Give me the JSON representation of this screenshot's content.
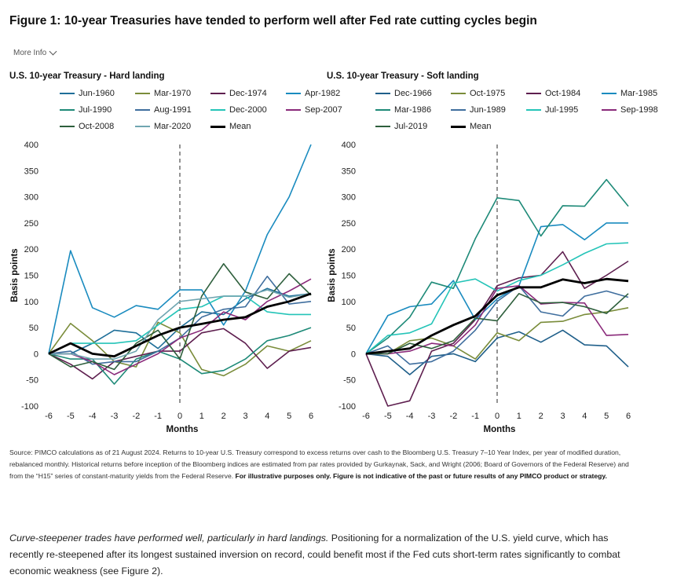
{
  "figure": {
    "title": "Figure 1: 10-year Treasuries have tended to perform well after Fed rate cutting cycles begin",
    "more_info": "More Info"
  },
  "chart_data": [
    {
      "type": "line",
      "title": "U.S. 10-year Treasury - Hard landing",
      "xlabel": "Months",
      "ylabel": "Basis points",
      "x": [
        -6,
        -5,
        -4,
        -3,
        -2,
        -1,
        0,
        1,
        2,
        3,
        4,
        5,
        6
      ],
      "ylim": [
        -100,
        400
      ],
      "yticks": [
        -100,
        -50,
        0,
        50,
        100,
        150,
        200,
        250,
        300,
        350,
        400
      ],
      "reference_line_x": 0,
      "grid": false,
      "legend_position": "top",
      "series": [
        {
          "name": "Jun-1960",
          "color": "#1f6f99",
          "values": [
            0,
            0,
            20,
            45,
            40,
            10,
            50,
            80,
            75,
            105,
            125,
            110,
            115
          ]
        },
        {
          "name": "Mar-1970",
          "color": "#7a8c3a",
          "values": [
            0,
            58,
            25,
            -15,
            -25,
            60,
            40,
            -30,
            -42,
            -20,
            15,
            5,
            25
          ]
        },
        {
          "name": "Dec-1974",
          "color": "#5e1f4f",
          "values": [
            0,
            -20,
            -48,
            -15,
            -5,
            5,
            5,
            40,
            48,
            20,
            -28,
            5,
            12
          ]
        },
        {
          "name": "Apr-1982",
          "color": "#1a8bbf",
          "values": [
            0,
            197,
            88,
            70,
            92,
            85,
            122,
            122,
            55,
            120,
            228,
            300,
            400
          ]
        },
        {
          "name": "Jul-1990",
          "color": "#1e8a78",
          "values": [
            0,
            -10,
            -10,
            -58,
            -10,
            5,
            -10,
            -38,
            -32,
            -10,
            25,
            35,
            50
          ]
        },
        {
          "name": "Aug-1991",
          "color": "#3f6e9e",
          "values": [
            0,
            5,
            -20,
            -15,
            -15,
            5,
            30,
            70,
            85,
            90,
            148,
            95,
            100
          ]
        },
        {
          "name": "Dec-2000",
          "color": "#25c4b8",
          "values": [
            0,
            20,
            20,
            20,
            25,
            55,
            85,
            90,
            110,
            110,
            80,
            75,
            75
          ]
        },
        {
          "name": "Sep-2007",
          "color": "#8a2a7a",
          "values": [
            0,
            0,
            -15,
            -40,
            -20,
            0,
            30,
            45,
            80,
            65,
            100,
            120,
            143
          ]
        },
        {
          "name": "Oct-2008",
          "color": "#2e5f3c",
          "values": [
            0,
            -25,
            -15,
            -30,
            20,
            45,
            -10,
            110,
            172,
            118,
            105,
            153,
            112
          ]
        },
        {
          "name": "Mar-2020",
          "color": "#6fa5b0",
          "values": [
            0,
            0,
            -10,
            -10,
            5,
            65,
            100,
            105,
            110,
            110,
            122,
            108,
            115
          ]
        },
        {
          "name": "Mean",
          "color": "#000000",
          "values": [
            0,
            20,
            0,
            -5,
            15,
            35,
            50,
            57,
            65,
            70,
            90,
            100,
            115
          ]
        }
      ]
    },
    {
      "type": "line",
      "title": "U.S. 10-year Treasury - Soft landing",
      "xlabel": "Months",
      "ylabel": "Basis points",
      "x": [
        -6,
        -5,
        -4,
        -3,
        -2,
        -1,
        0,
        1,
        2,
        3,
        4,
        5,
        6
      ],
      "ylim": [
        -100,
        400
      ],
      "yticks": [
        -100,
        -50,
        0,
        50,
        100,
        150,
        200,
        250,
        300,
        350,
        400
      ],
      "reference_line_x": 0,
      "grid": false,
      "legend_position": "top",
      "series": [
        {
          "name": "Dec-1966",
          "color": "#1f5f8a",
          "values": [
            0,
            -5,
            -40,
            -5,
            0,
            -15,
            30,
            42,
            22,
            45,
            17,
            15,
            -25
          ]
        },
        {
          "name": "Oct-1975",
          "color": "#7a8c3a",
          "values": [
            0,
            0,
            25,
            30,
            15,
            -10,
            40,
            25,
            60,
            62,
            75,
            80,
            88
          ]
        },
        {
          "name": "Oct-1984",
          "color": "#5e1f4f",
          "values": [
            0,
            -100,
            -90,
            5,
            20,
            65,
            130,
            145,
            150,
            195,
            125,
            150,
            177
          ]
        },
        {
          "name": "Mar-1985",
          "color": "#1a8bbf",
          "values": [
            0,
            73,
            90,
            95,
            140,
            65,
            105,
            130,
            243,
            247,
            218,
            250,
            250
          ]
        },
        {
          "name": "Mar-1986",
          "color": "#1e8a78",
          "values": [
            0,
            30,
            70,
            137,
            125,
            220,
            298,
            293,
            225,
            283,
            282,
            333,
            282
          ]
        },
        {
          "name": "Jun-1989",
          "color": "#3f6e9e",
          "values": [
            0,
            15,
            -20,
            -15,
            5,
            45,
            100,
            130,
            80,
            72,
            110,
            120,
            108
          ]
        },
        {
          "name": "Jul-1995",
          "color": "#25c4b8",
          "values": [
            0,
            35,
            40,
            57,
            135,
            143,
            120,
            140,
            150,
            170,
            192,
            210,
            212
          ]
        },
        {
          "name": "Sep-1998",
          "color": "#8a2a7a",
          "values": [
            0,
            0,
            5,
            20,
            15,
            55,
            125,
            130,
            95,
            98,
            97,
            35,
            37
          ]
        },
        {
          "name": "Jul-2019",
          "color": "#2e5f3c",
          "values": [
            0,
            0,
            20,
            10,
            25,
            68,
            63,
            115,
            97,
            98,
            90,
            77,
            115
          ]
        },
        {
          "name": "Mean",
          "color": "#000000",
          "values": [
            0,
            5,
            10,
            35,
            55,
            72,
            112,
            127,
            127,
            142,
            135,
            143,
            139
          ]
        }
      ]
    }
  ],
  "source": {
    "text": "Source: PIMCO calculations as of 21 August 2024. Returns to 10-year U.S. Treasury correspond to excess returns over cash to the Bloomberg U.S. Treasury 7–10 Year Index, per year of modified duration, rebalanced monthly. Historical returns before inception of the Bloomberg indices are estimated from par rates provided by Gurkaynak, Sack, and Wright (2006; Board of Governors of the Federal Reserve) and from the “H15” series of constant-maturity yields from the Federal Reserve. ",
    "bold": "For illustrative purposes only. Figure is not indicative of the past or future results of any PIMCO product or strategy."
  },
  "body": {
    "italic": "Curve-steepener trades have performed well, particularly in hard landings.",
    "text": " Positioning for a normalization of the U.S. yield curve, which has recently re-steepened after its longest sustained inversion on record, could benefit most if the Fed cuts short-term rates significantly to combat economic weakness (see Figure 2)."
  }
}
